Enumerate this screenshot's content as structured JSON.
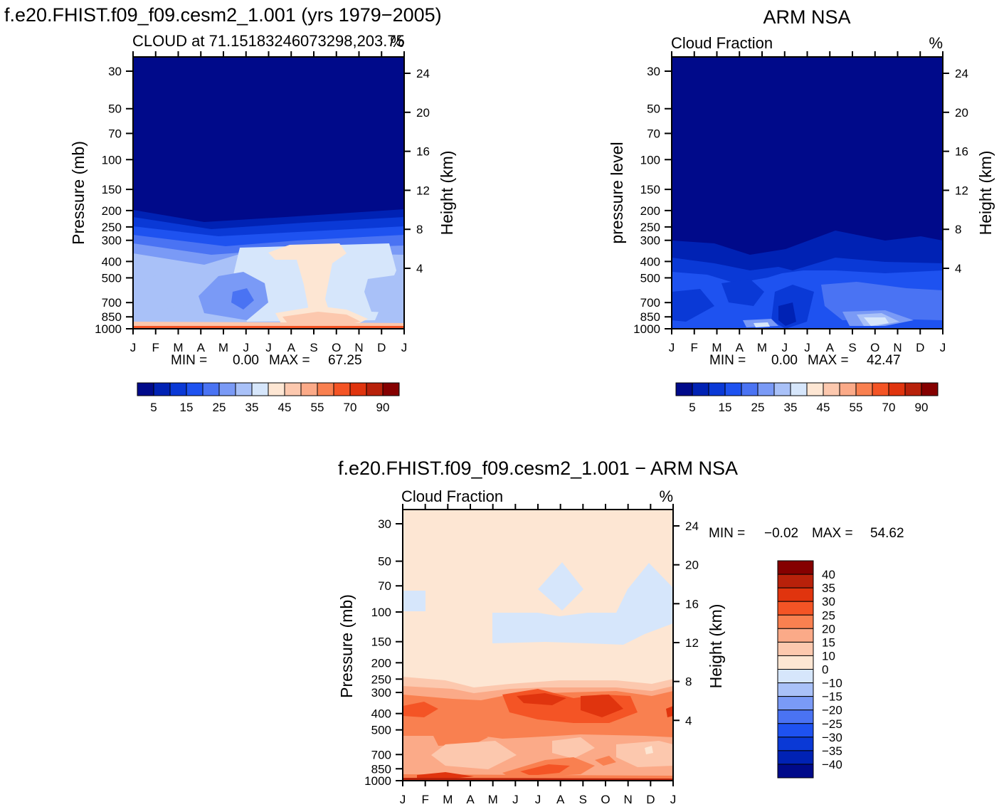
{
  "figure": {
    "main_title": "f.e20.FHIST.f09_f09.cesm2_1.001 (yrs 1979−2005)",
    "obs_title": "ARM NSA",
    "diff_title": "f.e20.FHIST.f09_f09.cesm2_1.001 − ARM NSA"
  },
  "chart_data": [
    {
      "id": "model",
      "type": "contour",
      "title": "CLOUD at 71.15183246073298,203.75",
      "units": "%",
      "ylabel": "Pressure (mb)",
      "y2label": "Height (km)",
      "x_ticks": [
        "J",
        "F",
        "M",
        "A",
        "M",
        "J",
        "J",
        "A",
        "S",
        "O",
        "N",
        "D",
        "J"
      ],
      "y_ticks": [
        "30",
        "50",
        "70",
        "100",
        "150",
        "200",
        "250",
        "300",
        "400",
        "500",
        "700",
        "850",
        "1000"
      ],
      "y2_ticks": [
        "24",
        "20",
        "16",
        "12",
        "8",
        "4"
      ],
      "min_label": "MIN =",
      "min_value": "0.00",
      "max_label": "MAX =",
      "max_value": "67.25",
      "colorbar_labels": [
        "5",
        "15",
        "25",
        "35",
        "45",
        "55",
        "70",
        "90"
      ],
      "colors": [
        "#000a8a",
        "#0022b4",
        "#0a39d6",
        "#1e52f0",
        "#4a73f3",
        "#7a9af6",
        "#a9c1f8",
        "#d6e6fb",
        "#fde6d3",
        "#fcc8ae",
        "#fbaa88",
        "#f98050",
        "#f45425",
        "#e0340e",
        "#b8210a",
        "#850000"
      ]
    },
    {
      "id": "obs",
      "type": "contour",
      "title": "Cloud Fraction",
      "units": "%",
      "ylabel": "pressure level",
      "y2label": "Height (km)",
      "x_ticks": [
        "J",
        "F",
        "M",
        "A",
        "M",
        "J",
        "J",
        "A",
        "S",
        "O",
        "N",
        "D",
        "J"
      ],
      "y_ticks": [
        "30",
        "50",
        "70",
        "100",
        "150",
        "200",
        "250",
        "300",
        "400",
        "500",
        "700",
        "850",
        "1000"
      ],
      "y2_ticks": [
        "24",
        "20",
        "16",
        "12",
        "8",
        "4"
      ],
      "min_label": "MIN =",
      "min_value": "0.00",
      "max_label": "MAX =",
      "max_value": "42.47",
      "colorbar_labels": [
        "5",
        "15",
        "25",
        "35",
        "45",
        "55",
        "70",
        "90"
      ],
      "colors": [
        "#000a8a",
        "#0022b4",
        "#0a39d6",
        "#1e52f0",
        "#4a73f3",
        "#7a9af6",
        "#a9c1f8",
        "#d6e6fb",
        "#fde6d3",
        "#fcc8ae",
        "#fbaa88",
        "#f98050",
        "#f45425",
        "#e0340e",
        "#b8210a",
        "#850000"
      ]
    },
    {
      "id": "diff",
      "type": "contour",
      "title": "Cloud Fraction",
      "units": "%",
      "ylabel": "Pressure (mb)",
      "y2label": "Height (km)",
      "x_ticks": [
        "J",
        "F",
        "M",
        "A",
        "M",
        "J",
        "J",
        "A",
        "S",
        "O",
        "N",
        "D",
        "J"
      ],
      "y_ticks": [
        "30",
        "50",
        "70",
        "100",
        "150",
        "200",
        "250",
        "300",
        "400",
        "500",
        "700",
        "850",
        "1000"
      ],
      "y2_ticks": [
        "24",
        "20",
        "16",
        "12",
        "8",
        "4"
      ],
      "min_label": "MIN =",
      "min_value": "−0.02",
      "max_label": "MAX =",
      "max_value": "54.62",
      "colorbar_labels": [
        "40",
        "35",
        "30",
        "25",
        "20",
        "15",
        "10",
        "0",
        "−10",
        "−15",
        "−20",
        "−25",
        "−30",
        "−35",
        "−40"
      ],
      "colors": [
        "#850000",
        "#b8210a",
        "#e0340e",
        "#f45425",
        "#f98050",
        "#fbaa88",
        "#fcc8ae",
        "#fde6d3",
        "#d6e6fb",
        "#a9c1f8",
        "#7a9af6",
        "#4a73f3",
        "#1e52f0",
        "#0a39d6",
        "#0022b4",
        "#000a8a"
      ]
    }
  ]
}
